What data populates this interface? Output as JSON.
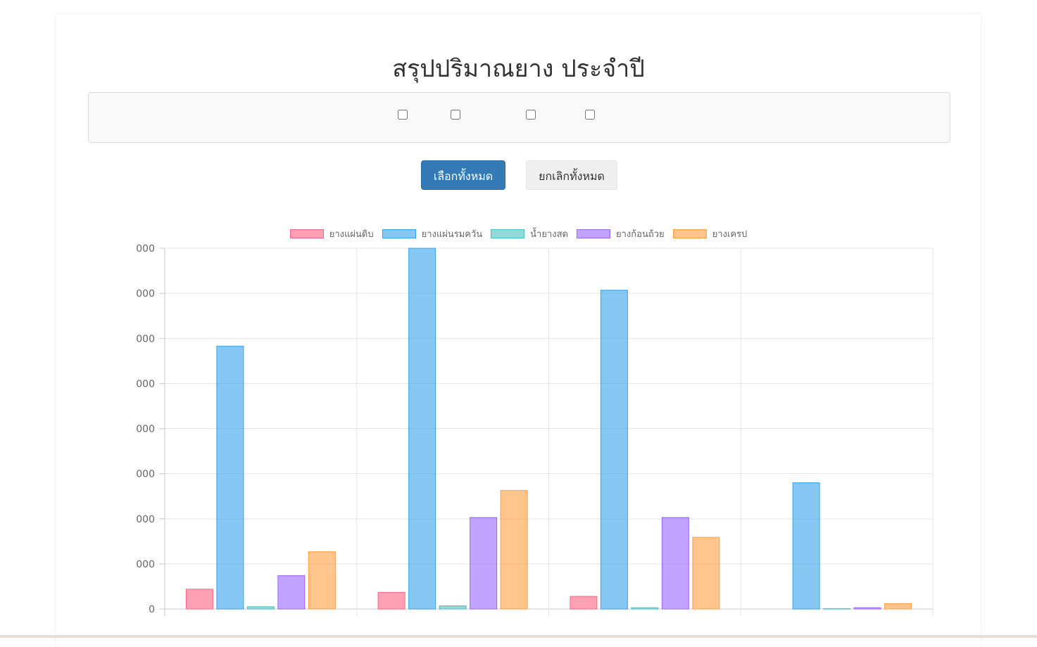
{
  "page": {
    "title": "สรุปปริมาณยาง ประจำปี",
    "select_all_label": "เลือกทั้งหมด",
    "deselect_all_label": "ยกเลิกทั้งหมด"
  },
  "chart_data": {
    "type": "bar",
    "title": "",
    "xlabel": "",
    "ylabel": "",
    "categories": [
      "",
      "",
      "",
      ""
    ],
    "ylim": [
      0,
      8
    ],
    "y_tick_values": [
      0,
      1,
      2,
      3,
      4,
      5,
      6,
      7,
      8
    ],
    "y_tick_labels": [
      "0",
      "000",
      "000",
      "000",
      "000",
      "000",
      "000",
      "000",
      "000"
    ],
    "grid": true,
    "legend_position": "top",
    "series": [
      {
        "name": "ยางแผ่นดิบ",
        "color": "#ff6384",
        "values": [
          0.44,
          0.37,
          0.28,
          0
        ]
      },
      {
        "name": "ยางแผ่นรมควัน",
        "color": "#36a2eb",
        "values": [
          5.83,
          8.0,
          7.07,
          2.8
        ]
      },
      {
        "name": "น้ำยางสด",
        "color": "#4bc0c0",
        "values": [
          0.05,
          0.07,
          0.03,
          0.01
        ]
      },
      {
        "name": "ยางก้อนถ้วย",
        "color": "#9966ff",
        "values": [
          0.74,
          2.03,
          2.03,
          0.03
        ]
      },
      {
        "name": "ยางเครป",
        "color": "#ff9f40",
        "values": [
          1.27,
          2.63,
          1.59,
          0.12
        ]
      }
    ]
  }
}
